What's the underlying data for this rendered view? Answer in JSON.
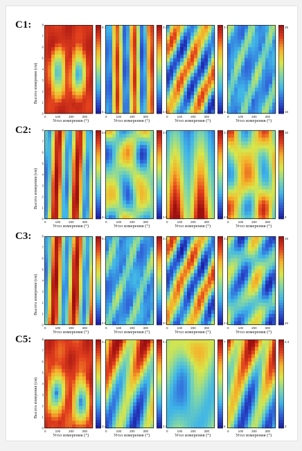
{
  "figure": {
    "y_axis_label": "Высота измерения (см)",
    "x_axis_label": "Угол измерения (°)",
    "x_ticks": [
      "0",
      "100",
      "200",
      "300"
    ],
    "y_ticks": [
      "0",
      "1",
      "2",
      "3",
      "4",
      "5",
      "6",
      "7",
      "8"
    ],
    "colormap": [
      "#1a1aa0",
      "#2f5fd8",
      "#3fb5e8",
      "#7fd6a8",
      "#d8e64a",
      "#f6b02a",
      "#e2401e",
      "#9e1010"
    ]
  },
  "chart_data": [
    {
      "type": "heatmap",
      "row": "C1:",
      "panel": 1,
      "colorbar": {
        "range": [
          4.2,
          5.7
        ]
      },
      "xlim": [
        0,
        360
      ],
      "ylim": [
        0,
        8
      ],
      "pattern": "two_cold_spots"
    },
    {
      "type": "heatmap",
      "row": "C1:",
      "panel": 2,
      "colorbar": {
        "range": [
          2.6,
          3.2
        ]
      },
      "xlim": [
        0,
        360
      ],
      "ylim": [
        0,
        8
      ],
      "pattern": "vertical_bands"
    },
    {
      "type": "heatmap",
      "row": "C1:",
      "panel": 3,
      "colorbar": {
        "range": [
          2.4,
          3.1
        ]
      },
      "xlim": [
        0,
        360
      ],
      "ylim": [
        0,
        8
      ],
      "pattern": "diagonal"
    },
    {
      "type": "heatmap",
      "row": "C1:",
      "panel": 4,
      "colorbar": {
        "range": [
          16,
          26
        ]
      },
      "xlim": [
        0,
        360
      ],
      "ylim": [
        0,
        8
      ],
      "pattern": "mostly_cold"
    },
    {
      "type": "heatmap",
      "row": "C2:",
      "panel": 1,
      "colorbar": {
        "range": [
          4.4,
          5.6
        ]
      },
      "xlim": [
        0,
        360
      ],
      "ylim": [
        0,
        8
      ],
      "pattern": "hot_vertical_bands"
    },
    {
      "type": "heatmap",
      "row": "C2:",
      "panel": 2,
      "colorbar": {
        "range": [
          2.9,
          3.6
        ]
      },
      "xlim": [
        0,
        360
      ],
      "ylim": [
        0,
        8
      ],
      "pattern": "mixed"
    },
    {
      "type": "heatmap",
      "row": "C2:",
      "panel": 3,
      "colorbar": {
        "range": [
          2.85,
          3.1
        ]
      },
      "xlim": [
        0,
        360
      ],
      "ylim": [
        0,
        8
      ],
      "pattern": "hot_bottom"
    },
    {
      "type": "heatmap",
      "row": "C2:",
      "panel": 4,
      "colorbar": {
        "range": [
          4,
          16
        ]
      },
      "xlim": [
        0,
        360
      ],
      "ylim": [
        0,
        8
      ],
      "pattern": "mixed_warm"
    },
    {
      "type": "heatmap",
      "row": "C3:",
      "panel": 1,
      "colorbar": {
        "range": [
          4.8,
          5.4
        ]
      },
      "xlim": [
        0,
        360
      ],
      "ylim": [
        0,
        8
      ],
      "pattern": "hot_vertical_bands"
    },
    {
      "type": "heatmap",
      "row": "C3:",
      "panel": 2,
      "colorbar": {
        "range": [
          3.05,
          3.45
        ]
      },
      "xlim": [
        0,
        360
      ],
      "ylim": [
        0,
        8
      ],
      "pattern": "mostly_cold"
    },
    {
      "type": "heatmap",
      "row": "C3:",
      "panel": 3,
      "colorbar": {
        "range": [
          2.8,
          3.25
        ]
      },
      "xlim": [
        0,
        360
      ],
      "ylim": [
        0,
        8
      ],
      "pattern": "diagonal"
    },
    {
      "type": "heatmap",
      "row": "C3:",
      "panel": 4,
      "colorbar": {
        "range": [
          10,
          16
        ]
      },
      "xlim": [
        0,
        360
      ],
      "ylim": [
        0,
        8
      ],
      "pattern": "cool_mixed"
    },
    {
      "type": "heatmap",
      "row": "C5:",
      "panel": 1,
      "colorbar": {
        "range": [
          3.4,
          4.1
        ]
      },
      "xlim": [
        0,
        360
      ],
      "ylim": [
        0,
        8
      ],
      "pattern": "two_cold_spots_warm"
    },
    {
      "type": "heatmap",
      "row": "C5:",
      "panel": 2,
      "colorbar": {
        "range": [
          2.04,
          2.36
        ]
      },
      "xlim": [
        0,
        360
      ],
      "ylim": [
        0,
        8
      ],
      "pattern": "warm_top"
    },
    {
      "type": "heatmap",
      "row": "C5:",
      "panel": 3,
      "colorbar": {
        "range": [
          5,
          7
        ]
      },
      "xlim": [
        0,
        360
      ],
      "ylim": [
        0,
        8
      ],
      "pattern": "mostly_green"
    },
    {
      "type": "heatmap",
      "row": "C5:",
      "panel": 4,
      "colorbar": {
        "range": [
          2,
          2.4
        ]
      },
      "xlim": [
        0,
        360
      ],
      "ylim": [
        0,
        8
      ],
      "pattern": "warm_top"
    }
  ]
}
